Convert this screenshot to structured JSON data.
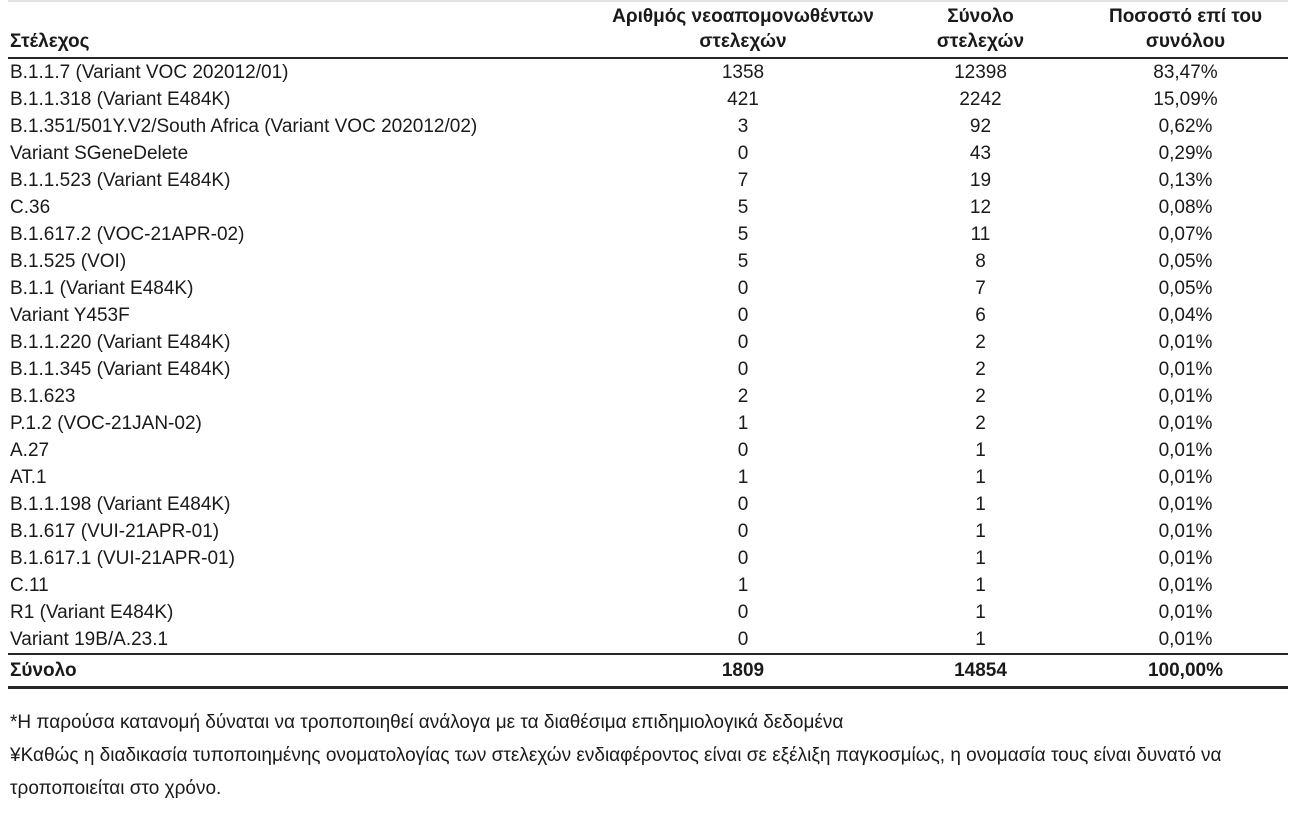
{
  "page": {
    "background": "#ffffff",
    "text_color": "#1a1a1a",
    "rule_color": "#262626",
    "language": "Greek"
  },
  "table": {
    "headers": [
      {
        "label": "Στέλεχος"
      },
      {
        "label": "Αριθμός νεοαπομονωθέντων\nστελεχών"
      },
      {
        "label": "Σύνολο\nστελεχών"
      },
      {
        "label": "Ποσοστό επί του\nσυνόλου"
      }
    ],
    "rows": [
      {
        "strain": "B.1.1.7 (Variant VOC 202012/01)",
        "new_isolates": "1358",
        "total": "12398",
        "percent": "83,47%"
      },
      {
        "strain": "B.1.1.318 (Variant E484K)",
        "new_isolates": "421",
        "total": "2242",
        "percent": "15,09%"
      },
      {
        "strain": "B.1.351/501Y.V2/South Africa (Variant VOC 202012/02)",
        "new_isolates": "3",
        "total": "92",
        "percent": "0,62%"
      },
      {
        "strain": "Variant SGeneDelete",
        "new_isolates": "0",
        "total": "43",
        "percent": "0,29%"
      },
      {
        "strain": "B.1.1.523 (Variant E484K)",
        "new_isolates": "7",
        "total": "19",
        "percent": "0,13%"
      },
      {
        "strain": "C.36",
        "new_isolates": "5",
        "total": "12",
        "percent": "0,08%"
      },
      {
        "strain": "B.1.617.2 (VOC-21APR-02)",
        "new_isolates": "5",
        "total": "11",
        "percent": "0,07%"
      },
      {
        "strain": "B.1.525 (VOI)",
        "new_isolates": "5",
        "total": "8",
        "percent": "0,05%"
      },
      {
        "strain": "B.1.1 (Variant E484K)",
        "new_isolates": "0",
        "total": "7",
        "percent": "0,05%"
      },
      {
        "strain": "Variant Y453F",
        "new_isolates": "0",
        "total": "6",
        "percent": "0,04%"
      },
      {
        "strain": "B.1.1.220 (Variant E484K)",
        "new_isolates": "0",
        "total": "2",
        "percent": "0,01%"
      },
      {
        "strain": "B.1.1.345 (Variant E484K)",
        "new_isolates": "0",
        "total": "2",
        "percent": "0,01%"
      },
      {
        "strain": "B.1.623",
        "new_isolates": "2",
        "total": "2",
        "percent": "0,01%"
      },
      {
        "strain": "P.1.2 (VOC-21JAN-02)",
        "new_isolates": "1",
        "total": "2",
        "percent": "0,01%"
      },
      {
        "strain": "A.27",
        "new_isolates": "0",
        "total": "1",
        "percent": "0,01%"
      },
      {
        "strain": "AT.1",
        "new_isolates": "1",
        "total": "1",
        "percent": "0,01%"
      },
      {
        "strain": "B.1.1.198 (Variant E484K)",
        "new_isolates": "0",
        "total": "1",
        "percent": "0,01%"
      },
      {
        "strain": "B.1.617 (VUI-21APR-01)",
        "new_isolates": "0",
        "total": "1",
        "percent": "0,01%"
      },
      {
        "strain": "B.1.617.1 (VUI-21APR-01)",
        "new_isolates": "0",
        "total": "1",
        "percent": "0,01%"
      },
      {
        "strain": "C.11",
        "new_isolates": "1",
        "total": "1",
        "percent": "0,01%"
      },
      {
        "strain": "R1 (Variant E484K)",
        "new_isolates": "0",
        "total": "1",
        "percent": "0,01%"
      },
      {
        "strain": "Variant 19B/A.23.1",
        "new_isolates": "0",
        "total": "1",
        "percent": "0,01%"
      }
    ],
    "total_row": {
      "label": "Σύνολο",
      "new_isolates": "1809",
      "total": "14854",
      "percent": "100,00%"
    }
  },
  "footnotes": [
    "*Η παρούσα κατανομή δύναται να τροποποιηθεί ανάλογα με τα διαθέσιμα επιδημιολογικά δεδομένα",
    "¥Καθώς η διαδικασία τυποποιημένης ονοματολογίας των στελεχών ενδιαφέροντος είναι σε εξέλιξη παγκοσμίως, η ονομασία τους είναι δυνατό να τροποποιείται στο χρόνο."
  ]
}
